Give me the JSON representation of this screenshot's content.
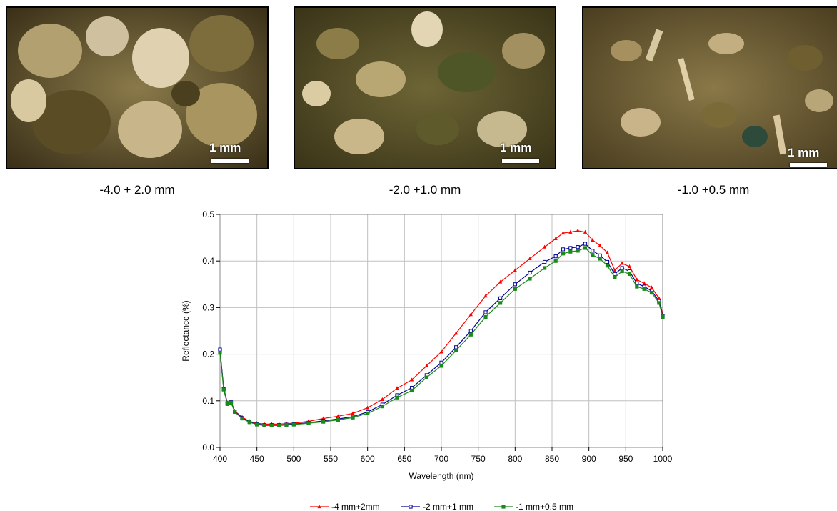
{
  "photos": [
    {
      "caption": "-4.0 + 2.0 mm",
      "scale_label": "1 mm"
    },
    {
      "caption": "-2.0 +1.0 mm",
      "scale_label": "1 mm"
    },
    {
      "caption": "-1.0 +0.5 mm",
      "scale_label": "1 mm"
    }
  ],
  "chart_data": {
    "type": "line",
    "title": "",
    "xlabel": "Wavelength (nm)",
    "ylabel": "Reflectance (%)",
    "xlim": [
      400,
      1000
    ],
    "ylim": [
      0.0,
      0.5
    ],
    "x_ticks": [
      "400",
      "450",
      "500",
      "550",
      "600",
      "650",
      "700",
      "750",
      "800",
      "850",
      "900",
      "950",
      "1000"
    ],
    "y_ticks": [
      "0.0",
      "0.1",
      "0.2",
      "0.3",
      "0.4",
      "0.5"
    ],
    "grid": true,
    "legend_position": "bottom",
    "x": [
      400,
      405,
      410,
      415,
      420,
      430,
      440,
      450,
      460,
      470,
      480,
      490,
      500,
      520,
      540,
      560,
      580,
      600,
      620,
      640,
      660,
      680,
      700,
      720,
      740,
      760,
      780,
      800,
      820,
      840,
      855,
      865,
      875,
      885,
      895,
      905,
      915,
      925,
      935,
      945,
      955,
      965,
      975,
      985,
      995,
      1000
    ],
    "series": [
      {
        "name": "-4 mm+2mm",
        "color": "#ff0000",
        "marker": "triangle",
        "values": [
          0.205,
          0.128,
          0.095,
          0.098,
          0.078,
          0.065,
          0.056,
          0.052,
          0.05,
          0.05,
          0.05,
          0.051,
          0.052,
          0.056,
          0.062,
          0.067,
          0.073,
          0.085,
          0.103,
          0.127,
          0.145,
          0.175,
          0.205,
          0.245,
          0.285,
          0.325,
          0.355,
          0.38,
          0.405,
          0.43,
          0.448,
          0.46,
          0.462,
          0.465,
          0.462,
          0.445,
          0.433,
          0.418,
          0.38,
          0.395,
          0.388,
          0.36,
          0.352,
          0.343,
          0.32,
          0.285
        ]
      },
      {
        "name": "-2 mm+1 mm",
        "color": "#000099",
        "marker": "square-open",
        "values": [
          0.21,
          0.125,
          0.095,
          0.097,
          0.077,
          0.063,
          0.055,
          0.05,
          0.048,
          0.048,
          0.048,
          0.049,
          0.05,
          0.053,
          0.057,
          0.061,
          0.066,
          0.076,
          0.092,
          0.112,
          0.128,
          0.155,
          0.182,
          0.215,
          0.25,
          0.29,
          0.32,
          0.35,
          0.375,
          0.398,
          0.41,
          0.425,
          0.428,
          0.43,
          0.437,
          0.422,
          0.412,
          0.398,
          0.372,
          0.385,
          0.378,
          0.352,
          0.345,
          0.336,
          0.314,
          0.282
        ]
      },
      {
        "name": "-1 mm+0.5 mm",
        "color": "#1a8a1a",
        "marker": "square",
        "values": [
          0.203,
          0.124,
          0.093,
          0.096,
          0.076,
          0.062,
          0.054,
          0.049,
          0.047,
          0.047,
          0.047,
          0.048,
          0.049,
          0.052,
          0.055,
          0.059,
          0.064,
          0.073,
          0.088,
          0.107,
          0.122,
          0.15,
          0.175,
          0.208,
          0.242,
          0.28,
          0.31,
          0.34,
          0.362,
          0.385,
          0.4,
          0.416,
          0.42,
          0.422,
          0.428,
          0.413,
          0.405,
          0.39,
          0.365,
          0.378,
          0.372,
          0.345,
          0.34,
          0.332,
          0.31,
          0.28
        ]
      }
    ]
  }
}
